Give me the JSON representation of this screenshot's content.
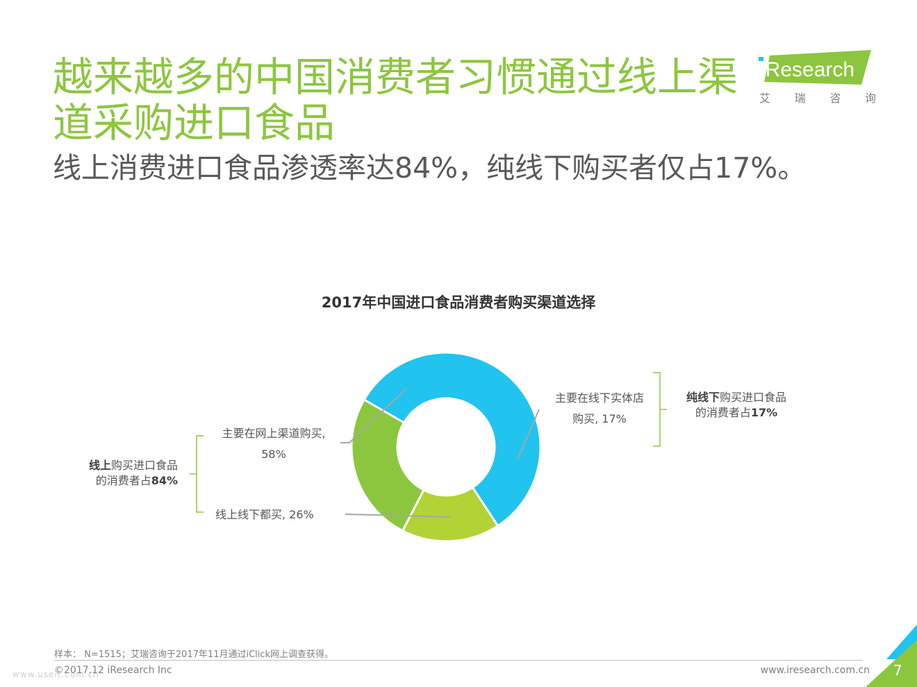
{
  "header": {
    "title": "越来越多的中国消费者习惯通过线上渠道采购进口食品",
    "subtitle": "线上消费进口食品渗透率达84%，纯线下购买者仅占17%。"
  },
  "logo": {
    "text": "iResearch",
    "cn": [
      "艾",
      "瑞",
      "咨",
      "询"
    ],
    "color": "#8cc63f"
  },
  "chart_data": {
    "type": "pie",
    "title": "2017年中国进口食品消费者购买渠道选择",
    "slices": [
      {
        "name": "主要在网上渠道购买",
        "value": 58,
        "color": "#21c3ef"
      },
      {
        "name": "主要在线下实体店购买",
        "value": 17,
        "color": "#b2d235"
      },
      {
        "name": "线上线下都买",
        "value": 26,
        "color": "#8cc63f"
      }
    ],
    "donut": true
  },
  "labels": {
    "online_l1": "主要在网上渠道购买,",
    "online_l2": "58%",
    "offline_l1": "主要在线下实体店",
    "offline_l2": "购买, 17%",
    "both": "线上线下都买, 26%"
  },
  "groups": {
    "online_bold": "线上",
    "online_rest": "购买进口食品",
    "online_line2": "的消费者占",
    "online_pct": "84%",
    "offline_bold": "纯线下",
    "offline_rest": "购买进口食品",
    "offline_line2": "的消费者占",
    "offline_pct": "17%"
  },
  "footer": {
    "note": "样本： N=1515；艾瑞咨询于2017年11月通过iClick网上调查获得。",
    "copyright": "©2017.12 iResearch Inc",
    "website": "www.iresearch.com.cn",
    "page": "7",
    "watermark": "www.useit.com.cn"
  }
}
